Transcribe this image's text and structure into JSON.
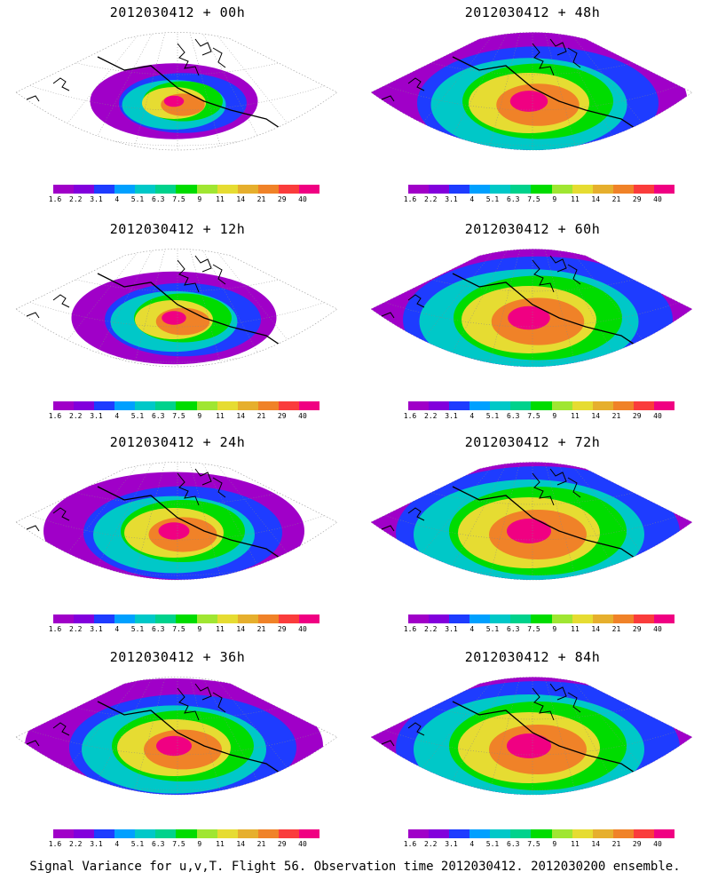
{
  "panels": [
    {
      "title": "2012030412 + 00h"
    },
    {
      "title": "2012030412 + 48h"
    },
    {
      "title": "2012030412 + 12h"
    },
    {
      "title": "2012030412 + 60h"
    },
    {
      "title": "2012030412 + 24h"
    },
    {
      "title": "2012030412 + 72h"
    },
    {
      "title": "2012030412 + 36h"
    },
    {
      "title": "2012030412 + 84h"
    }
  ],
  "colorbar": {
    "colors": [
      "#a000c8",
      "#8200dc",
      "#1e3cff",
      "#00a0ff",
      "#00c8c8",
      "#00d28c",
      "#00dc00",
      "#a0e632",
      "#e6dc32",
      "#e6af2d",
      "#f08228",
      "#fa3c3c",
      "#f00082"
    ],
    "labels": [
      "1.6",
      "2.2",
      "3.1",
      "4",
      "5.1",
      "6.3",
      "7.5",
      "9",
      "11",
      "14",
      "21",
      "29",
      "40"
    ]
  },
  "footer": "Signal Variance for u,v,T. Flight 56. Observation time 2012030412. 2012030200 ensemble."
}
